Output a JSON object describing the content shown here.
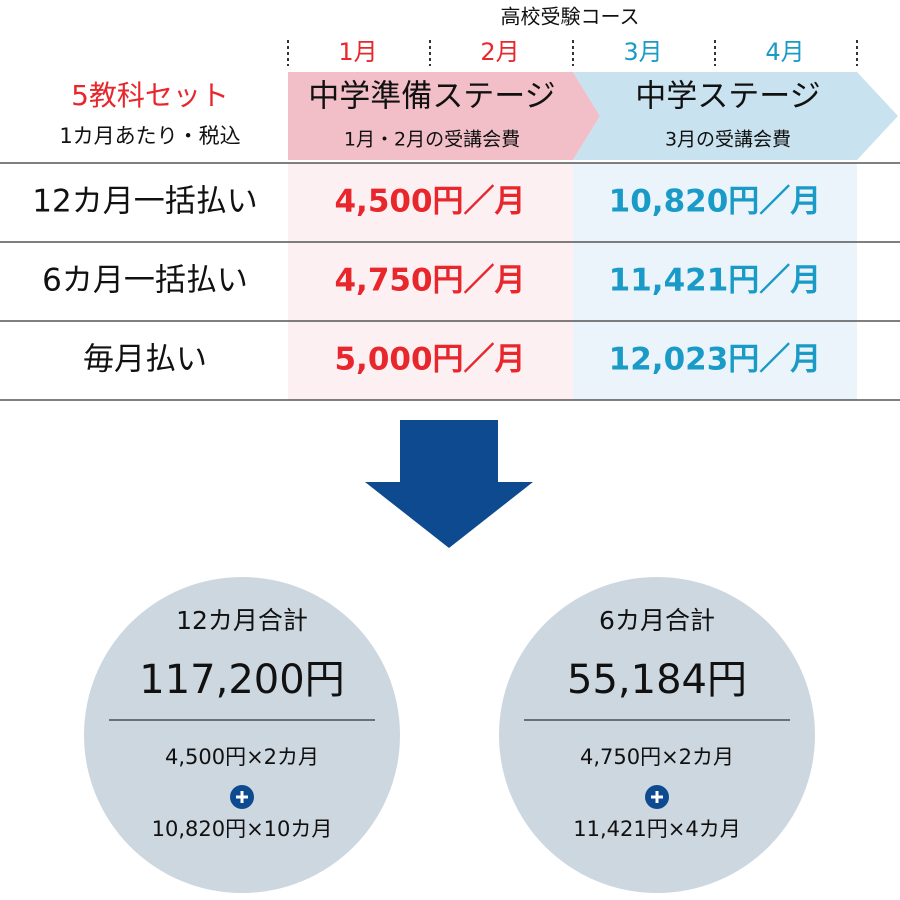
{
  "header": {
    "course": "高校受験コース",
    "months": [
      "1月",
      "2月",
      "3月",
      "4月"
    ],
    "set_title": "5教科セット",
    "set_note": "1カ月あたり・税込",
    "stages": [
      {
        "name": "中学準備ステージ",
        "note": "1月・2月の受講会費"
      },
      {
        "name": "中学ステージ",
        "note": "3月の受講会費"
      }
    ]
  },
  "table": {
    "rows": [
      {
        "label": "12カ月一括払い",
        "prices": [
          "4,500円／月",
          "10,820円／月"
        ]
      },
      {
        "label": "6カ月一括払い",
        "prices": [
          "4,750円／月",
          "11,421円／月"
        ]
      },
      {
        "label": "毎月払い",
        "prices": [
          "5,000円／月",
          "12,023円／月"
        ]
      }
    ]
  },
  "totals": [
    {
      "title": "12カ月合計",
      "amount": "117,200円",
      "line1": "4,500円×2カ月",
      "line2": "10,820円×10カ月"
    },
    {
      "title": "6カ月合計",
      "amount": "55,184円",
      "line1": "4,750円×2カ月",
      "line2": "11,421円×4カ月"
    }
  ]
}
